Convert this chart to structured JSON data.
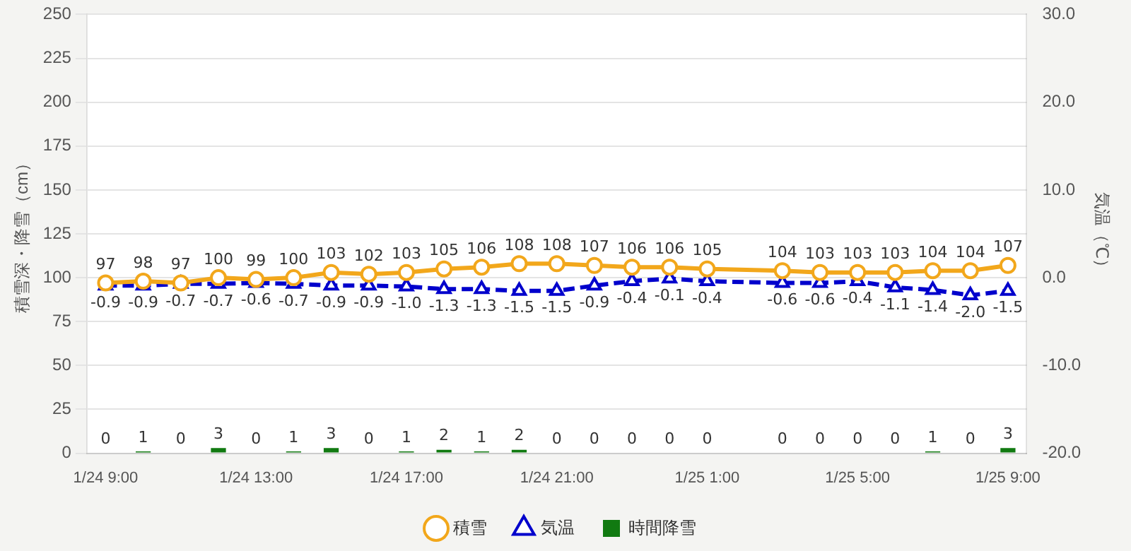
{
  "chart_data": {
    "type": "line",
    "ylabel": "積雪深・降雪（cm）",
    "y2label": "気温（℃）",
    "categories": [
      "1/24 9:00",
      null,
      null,
      null,
      "1/24 13:00",
      null,
      null,
      null,
      "1/24 17:00",
      null,
      null,
      null,
      "1/24 21:00",
      null,
      null,
      null,
      "1/25 1:00",
      null,
      null,
      null,
      "1/25 5:00",
      null,
      null,
      null,
      "1/25 9:00"
    ],
    "series": [
      {
        "name": "積雪",
        "color": "#f2a71b",
        "marker": "circle",
        "line_style": "solid",
        "values": [
          97,
          98,
          97,
          100,
          99,
          100,
          103,
          102,
          103,
          105,
          106,
          108,
          108,
          107,
          106,
          106,
          105,
          null,
          104,
          103,
          103,
          103,
          104,
          104,
          107
        ]
      },
      {
        "name": "気温",
        "axis": "y2",
        "color": "#0000cc",
        "marker": "triangle",
        "line_style": "dashed",
        "values": [
          -0.9,
          -0.9,
          -0.7,
          -0.7,
          -0.6,
          -0.7,
          -0.9,
          -0.9,
          -1.0,
          -1.3,
          -1.3,
          -1.5,
          -1.5,
          -0.9,
          -0.4,
          -0.1,
          -0.4,
          null,
          -0.6,
          -0.6,
          -0.4,
          -1.1,
          -1.4,
          -2.0,
          -1.5
        ],
        "value_labels": [
          "-0.9",
          "-0.9",
          "-0.7",
          "-0.7",
          "-0.6",
          "-0.7",
          "-0.9",
          "-0.9",
          "-1.0",
          "-1.3",
          "-1.3",
          "-1.5",
          "-1.5",
          "-0.9",
          "-0.4",
          "-0.1",
          "-0.4",
          null,
          "-0.6",
          "-0.6",
          "-0.4",
          "-1.1",
          "-1.4",
          "-2.0",
          "-1.5"
        ]
      },
      {
        "name": "時間降雪",
        "type": "bar",
        "color": "#117a11",
        "values": [
          0,
          1,
          0,
          3,
          0,
          1,
          3,
          0,
          1,
          2,
          1,
          2,
          0,
          0,
          0,
          0,
          0,
          null,
          0,
          0,
          0,
          0,
          1,
          0,
          3
        ]
      }
    ],
    "ylim": [
      0,
      250
    ],
    "yticks": [
      0,
      25,
      50,
      75,
      100,
      125,
      150,
      175,
      200,
      225,
      250
    ],
    "y2lim": [
      -20,
      30
    ],
    "y2ticks": [
      {
        "value": -20,
        "label": "-20.0"
      },
      {
        "value": -10,
        "label": "-10.0"
      },
      {
        "value": 0,
        "label": "0.0"
      },
      {
        "value": 10,
        "label": "10.0"
      },
      {
        "value": 20,
        "label": "20.0"
      },
      {
        "value": 30,
        "label": "30.0"
      }
    ],
    "grid": "y",
    "legend": "bottom",
    "data_labels": true
  }
}
